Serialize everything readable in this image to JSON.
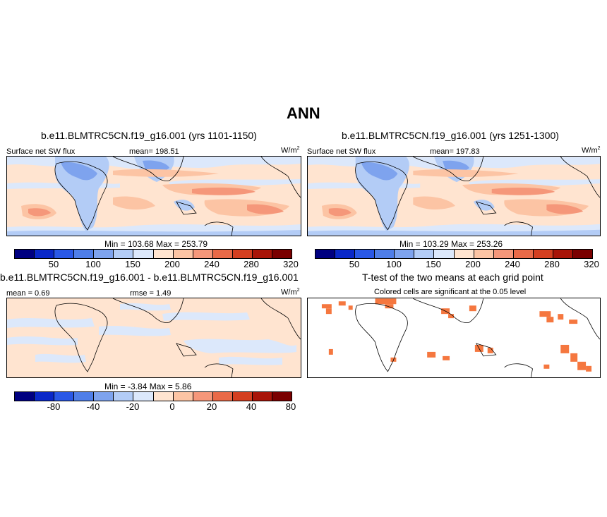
{
  "figure_title": "ANN",
  "colors": {
    "abs_scale": [
      "#000080",
      "#0a28c8",
      "#2a58e6",
      "#4f7ee8",
      "#7ea3ee",
      "#b3ccf6",
      "#dce8fb",
      "#ffe4d0",
      "#fcc4a4",
      "#f5977a",
      "#e96a48",
      "#d43f20",
      "#a81408",
      "#7a0000"
    ],
    "diff_scale": [
      "#000080",
      "#0a28c8",
      "#2a58e6",
      "#4f7ee8",
      "#7ea3ee",
      "#b3ccf6",
      "#dce8fb",
      "#ffe4d0",
      "#fcc4a4",
      "#f5977a",
      "#e96a48",
      "#d43f20",
      "#a81408",
      "#7a0000"
    ],
    "significant": "#f5773f"
  },
  "panels": {
    "top_left": {
      "title": "b.e11.BLMTRC5CN.f19_g16.001 (yrs 1101-1150)",
      "variable": "Surface net SW flux",
      "mean_label": "mean= 198.51",
      "units": "W/m",
      "units_sup": "2",
      "minmax": "Min = 103.68 Max = 253.79"
    },
    "top_right": {
      "title": "b.e11.BLMTRC5CN.f19_g16.001 (yrs 1251-1300)",
      "variable": "Surface net SW flux",
      "mean_label": "mean= 197.83",
      "units": "W/m",
      "units_sup": "2",
      "minmax": "Min = 103.29 Max = 253.26"
    },
    "bottom_left": {
      "title": "b.e11.BLMTRC5CN.f19_g16.001 - b.e11.BLMTRC5CN.f19_g16.001",
      "mean_label": "mean =   0.69",
      "rmse_label": "rmse =   1.49",
      "units": "W/m",
      "units_sup": "2",
      "minmax": "Min =  -3.84 Max =   5.86"
    },
    "bottom_right": {
      "title": "T-test of the two means at each grid point",
      "subtitle": "Colored cells are significant at the 0.05 level"
    }
  },
  "abs_ticks": [
    "50",
    "100",
    "150",
    "200",
    "240",
    "280",
    "320"
  ],
  "diff_ticks": [
    "-80",
    "-40",
    "-20",
    "0",
    "20",
    "40",
    "80"
  ]
}
